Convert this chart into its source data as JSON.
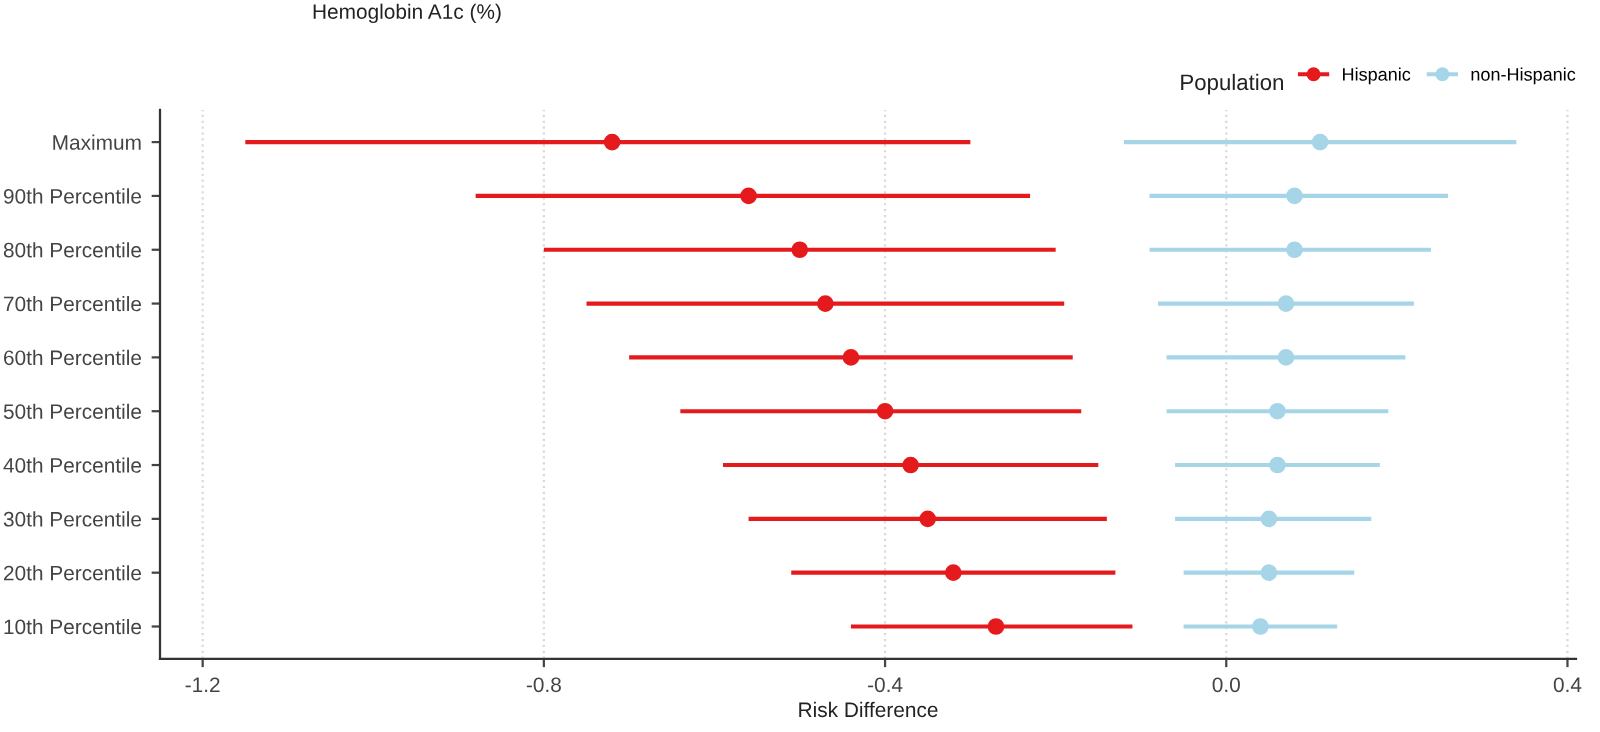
{
  "chart_data": {
    "type": "scatter",
    "orientation": "horizontal",
    "title": "Hemoglobin A1c (%)",
    "xlabel": "Risk Difference",
    "legend_title": "Population",
    "categories": [
      "Maximum",
      "90th Percentile",
      "80th Percentile",
      "70th Percentile",
      "60th Percentile",
      "50th Percentile",
      "40th Percentile",
      "30th Percentile",
      "20th Percentile",
      "10th Percentile"
    ],
    "series": [
      {
        "name": "Hispanic",
        "color": "#e41a1c",
        "values": [
          -0.72,
          -0.56,
          -0.5,
          -0.47,
          -0.44,
          -0.4,
          -0.37,
          -0.35,
          -0.32,
          -0.27
        ],
        "errors": [
          [
            -1.15,
            -0.3
          ],
          [
            -0.88,
            -0.23
          ],
          [
            -0.8,
            -0.2
          ],
          [
            -0.75,
            -0.19
          ],
          [
            -0.7,
            -0.18
          ],
          [
            -0.64,
            -0.17
          ],
          [
            -0.59,
            -0.15
          ],
          [
            -0.56,
            -0.14
          ],
          [
            -0.51,
            -0.13
          ],
          [
            -0.44,
            -0.11
          ]
        ]
      },
      {
        "name": "non-Hispanic",
        "color": "#a6d5e8",
        "values": [
          0.11,
          0.08,
          0.08,
          0.07,
          0.07,
          0.06,
          0.06,
          0.05,
          0.05,
          0.04
        ],
        "errors": [
          [
            -0.12,
            0.34
          ],
          [
            -0.09,
            0.26
          ],
          [
            -0.09,
            0.24
          ],
          [
            -0.08,
            0.22
          ],
          [
            -0.07,
            0.21
          ],
          [
            -0.07,
            0.19
          ],
          [
            -0.06,
            0.18
          ],
          [
            -0.06,
            0.17
          ],
          [
            -0.05,
            0.15
          ],
          [
            -0.05,
            0.13
          ]
        ]
      }
    ],
    "xlim": [
      -1.25,
      0.41
    ],
    "xticks": [
      -1.2,
      -0.8,
      -0.4,
      {
        "value": 0,
        "label": "0.0"
      },
      0.4
    ],
    "grid": "x",
    "legend": "top right",
    "marker": "circle"
  }
}
